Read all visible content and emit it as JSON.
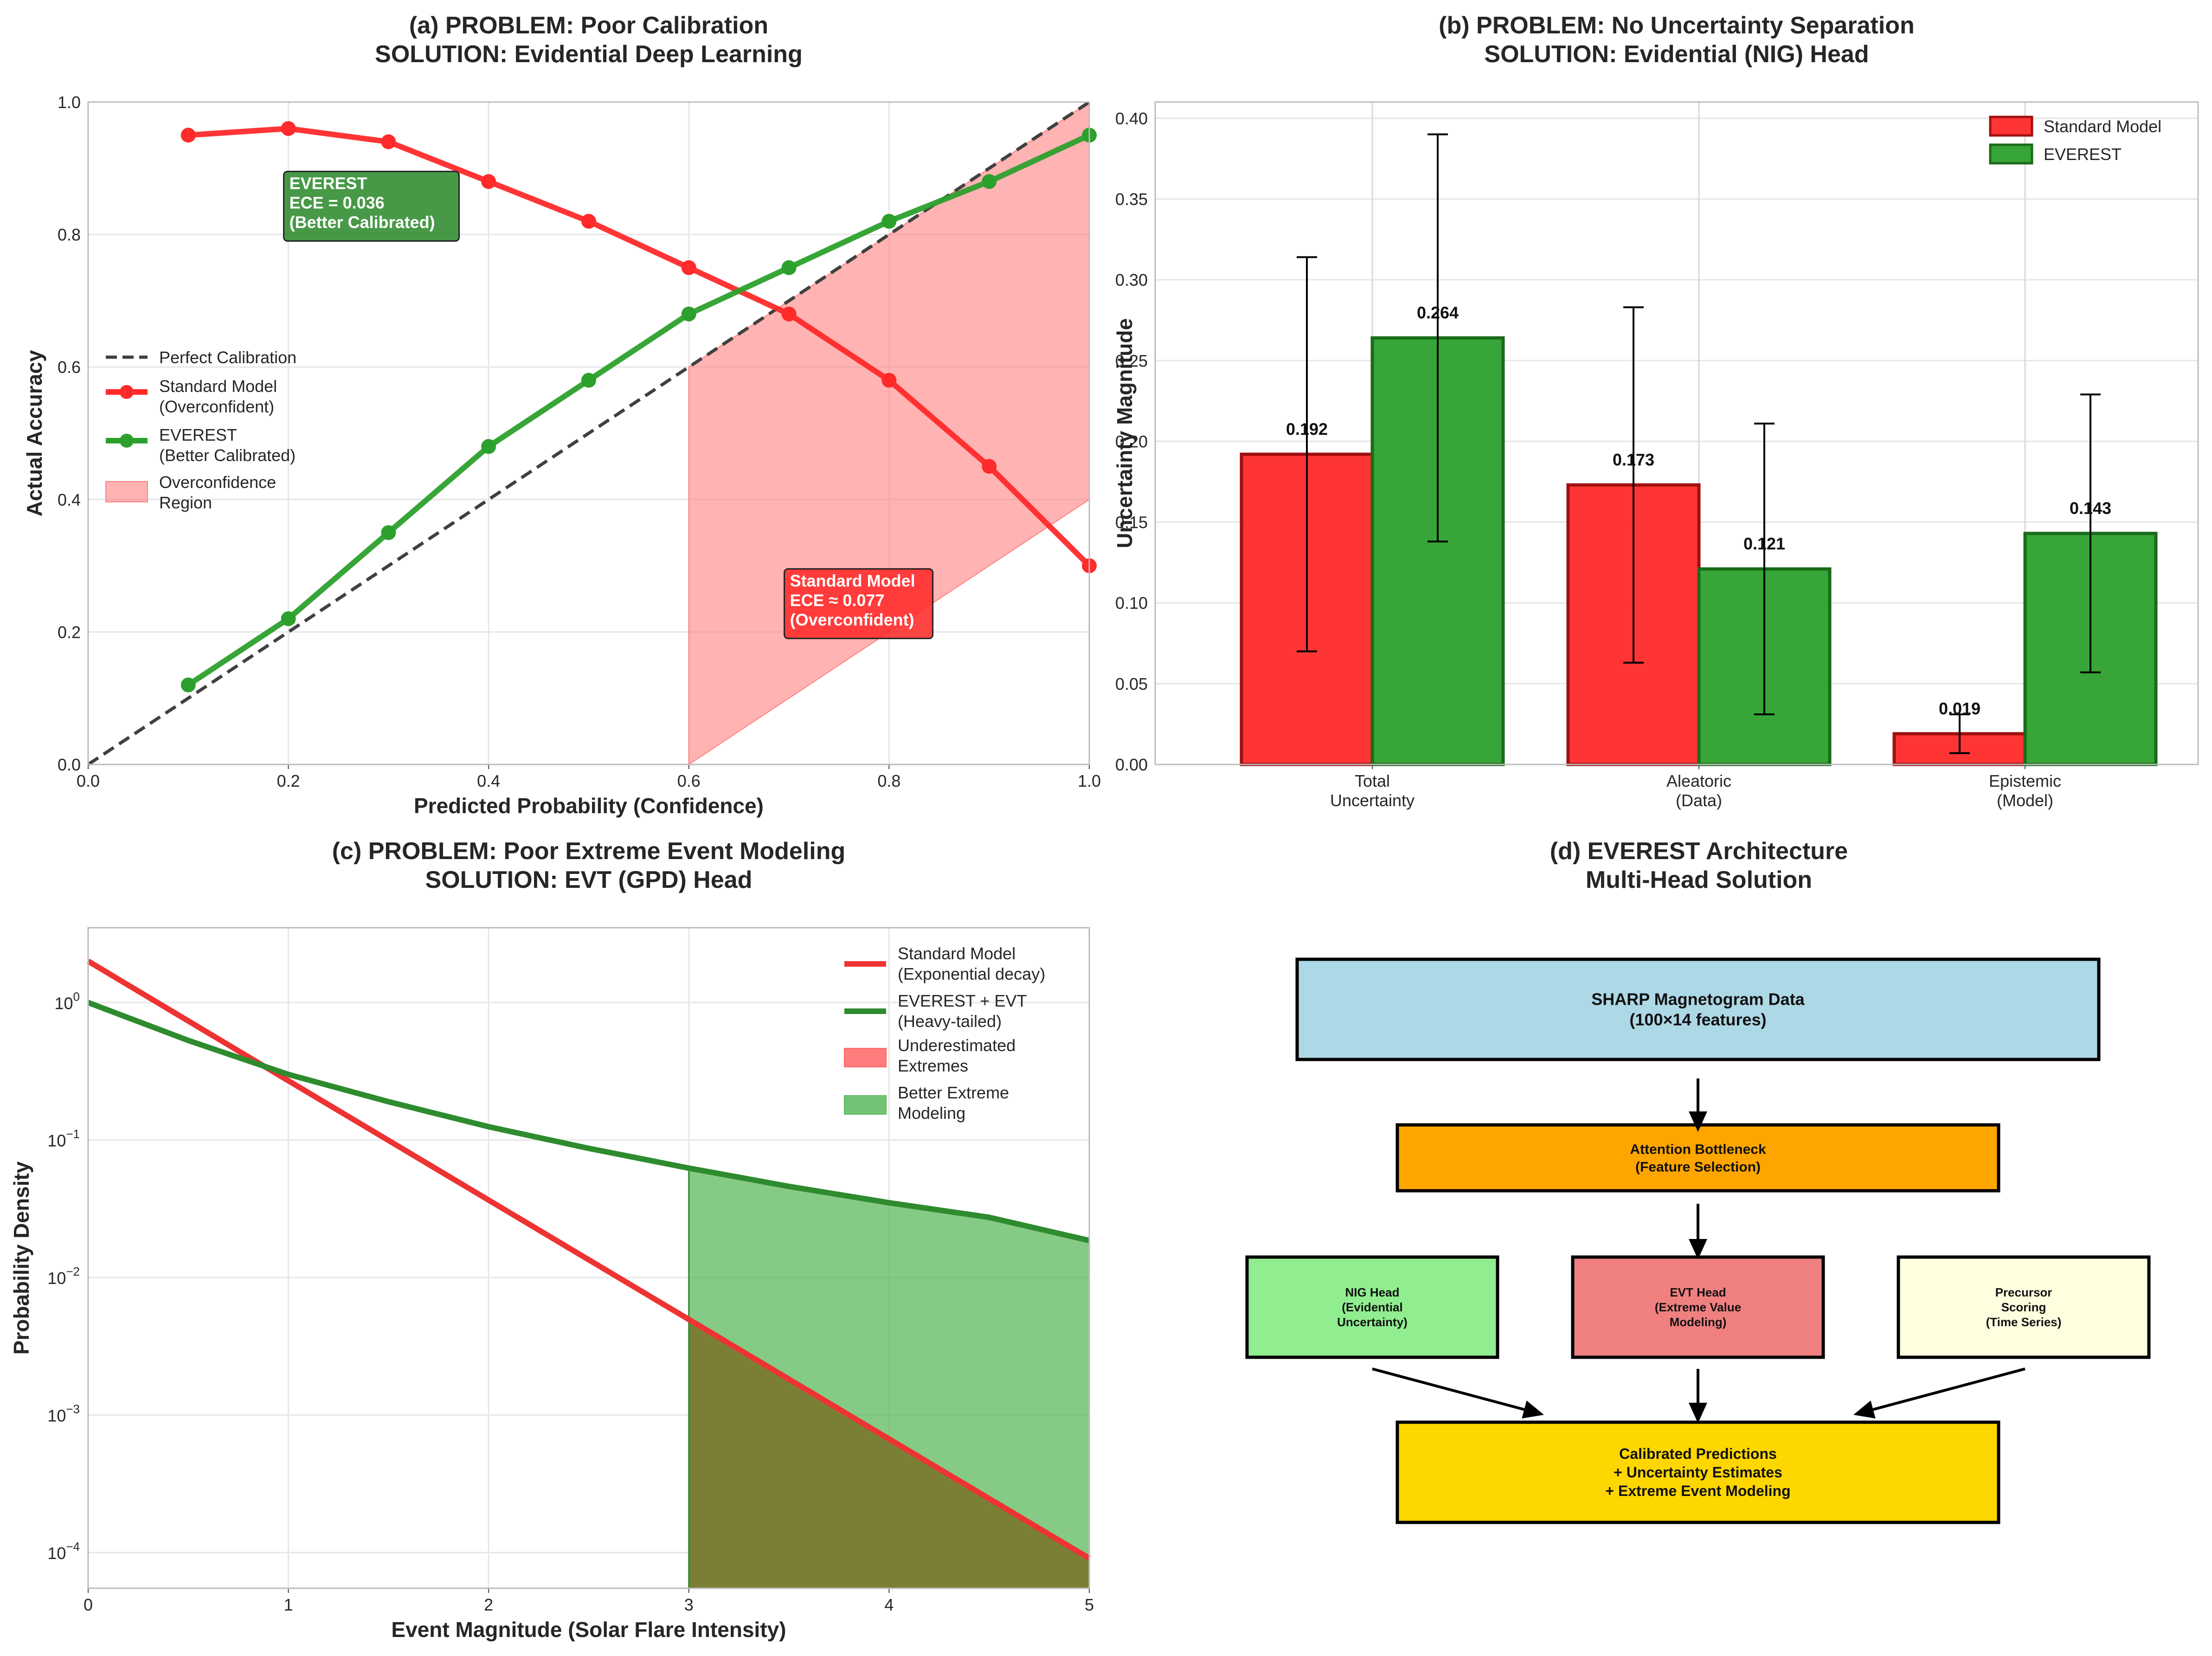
{
  "chart_data": [
    {
      "type": "line",
      "title": "(a) PROBLEM: Poor Calibration\nSOLUTION: Evidential Deep Learning",
      "xlabel": "Predicted Probability (Confidence)",
      "ylabel": "Actual Accuracy",
      "xlim": [
        0,
        1
      ],
      "ylim": [
        0,
        1
      ],
      "xticks": [
        "0.0",
        "0.2",
        "0.4",
        "0.6",
        "0.8",
        "1.0"
      ],
      "yticks": [
        "0.0",
        "0.2",
        "0.4",
        "0.6",
        "0.8",
        "1.0"
      ],
      "grid": true,
      "legend_position": "center-left",
      "series": [
        {
          "name": "Perfect Calibration",
          "style": "dashed",
          "color": "#404040",
          "x": [
            0,
            1
          ],
          "y": [
            0,
            1
          ]
        },
        {
          "name": "Standard Model\n(Overconfident)",
          "color": "#ff2a2a",
          "x": [
            0.1,
            0.2,
            0.3,
            0.4,
            0.5,
            0.6,
            0.7,
            0.8,
            0.9,
            1.0
          ],
          "y": [
            0.95,
            0.96,
            0.94,
            0.88,
            0.82,
            0.75,
            0.68,
            0.58,
            0.45,
            0.3
          ]
        },
        {
          "name": "EVEREST\n(Better Calibrated)",
          "color": "#2ca02c",
          "x": [
            0.1,
            0.2,
            0.3,
            0.4,
            0.5,
            0.6,
            0.7,
            0.8,
            0.9,
            1.0
          ],
          "y": [
            0.12,
            0.22,
            0.35,
            0.48,
            0.58,
            0.68,
            0.75,
            0.82,
            0.88,
            0.95
          ]
        }
      ],
      "region": {
        "name": "Overconfidence\nRegion",
        "color": "#ff8080",
        "x": [
          0.6,
          1.0
        ],
        "upper": [
          0.6,
          1.0
        ],
        "lower": [
          0.0,
          0.4
        ]
      },
      "annotations": [
        {
          "text": "EVEREST\nECE = 0.036\n(Better Calibrated)",
          "x": 0.2,
          "y": 0.8,
          "color": "#2e8b2e"
        },
        {
          "text": "Standard Model\nECE ≈ 0.077\n(Overconfident)",
          "x": 0.7,
          "y": 0.2,
          "color": "#ff2a2a"
        }
      ]
    },
    {
      "type": "bar",
      "title": "(b) PROBLEM: No Uncertainty Separation\nSOLUTION: Evidential (NIG) Head",
      "ylabel": "Uncertainty Magnitude",
      "categories": [
        "Total\nUncertainty",
        "Aleatoric\n(Data)",
        "Epistemic\n(Model)"
      ],
      "ylim": [
        0,
        0.41
      ],
      "yticks": [
        "0.00",
        "0.05",
        "0.10",
        "0.15",
        "0.20",
        "0.25",
        "0.30",
        "0.35",
        "0.40"
      ],
      "grid": true,
      "legend_position": "top-right",
      "series": [
        {
          "name": "Standard Model",
          "color": "#ff2a2a",
          "values": [
            0.192,
            0.173,
            0.019
          ],
          "errors": [
            0.122,
            0.11,
            0.012
          ],
          "labels": [
            "0.192",
            "0.173",
            "0.019"
          ]
        },
        {
          "name": "EVEREST",
          "color": "#2ca02c",
          "values": [
            0.264,
            0.121,
            0.143
          ],
          "errors": [
            0.126,
            0.09,
            0.086
          ],
          "labels": [
            "0.264",
            "0.121",
            "0.143"
          ]
        }
      ]
    },
    {
      "type": "line",
      "title": "(c) PROBLEM: Poor Extreme Event Modeling\nSOLUTION: EVT (GPD) Head",
      "xlabel": "Event Magnitude (Solar Flare Intensity)",
      "ylabel": "Probability Density",
      "xlim": [
        0,
        5
      ],
      "ylim": [
        5.5e-05,
        3.5
      ],
      "yscale": "log",
      "xticks": [
        "0",
        "1",
        "2",
        "3",
        "4",
        "5"
      ],
      "yticks": [
        {
          "base": "10",
          "exp": "0",
          "value": 1
        },
        {
          "base": "10",
          "exp": "−1",
          "value": 0.1
        },
        {
          "base": "10",
          "exp": "−2",
          "value": 0.01
        },
        {
          "base": "10",
          "exp": "−3",
          "value": 0.001
        },
        {
          "base": "10",
          "exp": "−4",
          "value": 0.0001
        }
      ],
      "grid": true,
      "legend_position": "top-right",
      "series": [
        {
          "name": "Standard Model\n(Exponential decay)",
          "color": "#ee3333",
          "x": [
            0,
            1,
            2,
            3,
            4,
            5
          ],
          "y": [
            2.0,
            0.27,
            0.0366,
            0.00496,
            0.00067,
            9.08e-05
          ]
        },
        {
          "name": "EVEREST + EVT\n(Heavy-tailed)",
          "color": "#2e8b2e",
          "x": [
            0,
            0.5,
            1,
            1.5,
            2,
            2.5,
            3,
            3.5,
            4,
            4.5,
            5
          ],
          "y": [
            1.0,
            0.53,
            0.3,
            0.19,
            0.125,
            0.087,
            0.0625,
            0.046,
            0.035,
            0.0274,
            0.0186
          ]
        }
      ],
      "regions": [
        {
          "name": "Underestimated\nExtremes",
          "color": "#ff6666",
          "x_from": 3,
          "x_to": 5,
          "under": "Standard Model\n(Exponential decay)"
        },
        {
          "name": "Better Extreme\nModeling",
          "color": "#5cb85c",
          "x_from": 3,
          "x_to": 5,
          "under": "EVEREST + EVT\n(Heavy-tailed)"
        }
      ]
    }
  ],
  "diagram": {
    "title": "(d) EVEREST Architecture\nMulti-Head Solution",
    "boxes": [
      {
        "text": "SHARP Magnetogram Data\n(100×14 features)",
        "color": "#add8e6"
      },
      {
        "text": "Attention Bottleneck\n(Feature Selection)",
        "color": "#ffa500"
      },
      {
        "text": "NIG Head\n(Evidential\nUncertainty)",
        "color": "#90ee90"
      },
      {
        "text": "EVT Head\n(Extreme Value\nModeling)",
        "color": "#f08080"
      },
      {
        "text": "Precursor\nScoring\n(Time Series)",
        "color": "#ffffe0"
      },
      {
        "text": "Calibrated Predictions\n+ Uncertainty Estimates\n+ Extreme Event Modeling",
        "color": "#ffd700"
      }
    ]
  }
}
